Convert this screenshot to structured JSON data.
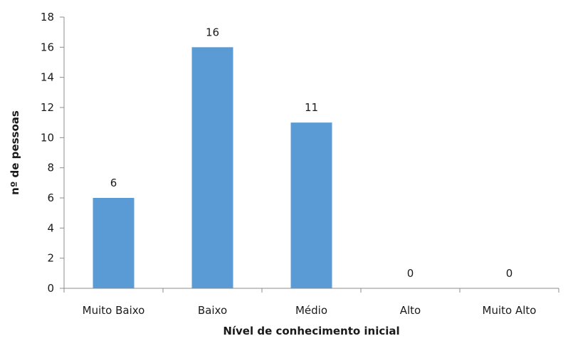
{
  "chart_data": {
    "type": "bar",
    "categories": [
      "Muito Baixo",
      "Baixo",
      "Médio",
      "Alto",
      "Muito Alto"
    ],
    "values": [
      6,
      16,
      11,
      0,
      0
    ],
    "data_labels": [
      "6",
      "16",
      "11",
      "0",
      "0"
    ],
    "title": "",
    "xlabel": "Nível de conhecimento inicial",
    "ylabel": "nº de pessoas",
    "ylim": [
      0,
      18
    ],
    "yticks": [
      0,
      2,
      4,
      6,
      8,
      10,
      12,
      14,
      16,
      18
    ],
    "ytick_labels": [
      "0",
      "2",
      "4",
      "6",
      "8",
      "10",
      "12",
      "14",
      "16",
      "18"
    ],
    "grid": false,
    "legend": "none",
    "bar_color": "#5b9bd5"
  }
}
